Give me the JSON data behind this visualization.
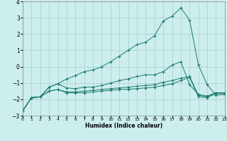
{
  "xlabel": "Humidex (Indice chaleur)",
  "background_color": "#cceeed",
  "grid_color": "#aacccc",
  "line_color": "#1a7a6e",
  "xlim": [
    0,
    23
  ],
  "ylim": [
    -3,
    4
  ],
  "xticks": [
    0,
    1,
    2,
    3,
    4,
    5,
    6,
    7,
    8,
    9,
    10,
    11,
    12,
    13,
    14,
    15,
    16,
    17,
    18,
    19,
    20,
    21,
    22,
    23
  ],
  "yticks": [
    -3,
    -2,
    -1,
    0,
    1,
    2,
    3,
    4
  ],
  "s1_y": [
    -2.7,
    -1.9,
    -1.85,
    -1.25,
    -1.05,
    -0.75,
    -0.55,
    -0.3,
    -0.2,
    0.0,
    0.3,
    0.65,
    1.0,
    1.35,
    1.5,
    1.9,
    2.8,
    3.1,
    3.6,
    2.85,
    0.1,
    -1.1,
    -1.75,
    -1.7
  ],
  "s2_y": [
    -2.7,
    -1.9,
    -1.85,
    -1.25,
    -1.05,
    -1.3,
    -1.35,
    -1.25,
    -1.25,
    -1.15,
    -1.0,
    -0.85,
    -0.75,
    -0.6,
    -0.5,
    -0.5,
    -0.3,
    0.1,
    0.3,
    -1.1,
    -1.7,
    -1.8,
    -1.6,
    -1.6
  ],
  "s3_y": [
    -2.7,
    -1.9,
    -1.85,
    -1.5,
    -1.4,
    -1.55,
    -1.55,
    -1.5,
    -1.45,
    -1.4,
    -1.35,
    -1.3,
    -1.25,
    -1.2,
    -1.15,
    -1.1,
    -0.95,
    -0.85,
    -0.7,
    -0.6,
    -1.75,
    -1.85,
    -1.6,
    -1.6
  ],
  "s4_y": [
    -2.7,
    -1.9,
    -1.85,
    -1.5,
    -1.4,
    -1.6,
    -1.6,
    -1.6,
    -1.55,
    -1.5,
    -1.45,
    -1.4,
    -1.38,
    -1.35,
    -1.3,
    -1.25,
    -1.15,
    -1.05,
    -0.85,
    -0.65,
    -1.85,
    -1.9,
    -1.65,
    -1.65
  ]
}
